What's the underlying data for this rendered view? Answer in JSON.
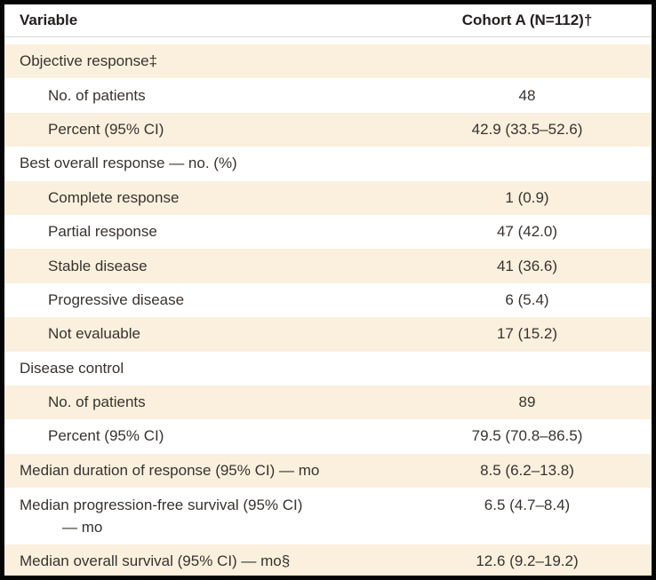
{
  "colors": {
    "shaded_row": "#fbf0de",
    "frame": "#050505",
    "header_rule": "#d8d8d8",
    "text": "#38332f"
  },
  "header": {
    "variable_label": "Variable",
    "cohort_label": "Cohort A (N=112)†"
  },
  "rows": [
    {
      "label": "Objective response‡",
      "value": ""
    },
    {
      "label": "No. of patients",
      "value": "48"
    },
    {
      "label": "Percent (95% CI)",
      "value": "42.9 (33.5–52.6)"
    },
    {
      "label": "Best overall response — no. (%)",
      "value": ""
    },
    {
      "label": "Complete response",
      "value": "1 (0.9)"
    },
    {
      "label": "Partial response",
      "value": "47 (42.0)"
    },
    {
      "label": "Stable disease",
      "value": "41 (36.6)"
    },
    {
      "label": "Progressive disease",
      "value": "6 (5.4)"
    },
    {
      "label": "Not evaluable",
      "value": "17 (15.2)"
    },
    {
      "label": "Disease control",
      "value": ""
    },
    {
      "label": "No. of patients",
      "value": "89"
    },
    {
      "label": "Percent (95% CI)",
      "value": "79.5 (70.8–86.5)"
    },
    {
      "label": "Median duration of response (95% CI) — mo",
      "value": "8.5 (6.2–13.8)"
    },
    {
      "label": "Median progression-free survival (95% CI)",
      "label_line2": "— mo",
      "value": "6.5 (4.7–8.4)"
    },
    {
      "label": "Median overall survival (95% CI) — mo§",
      "value": "12.6 (9.2–19.2)"
    }
  ]
}
